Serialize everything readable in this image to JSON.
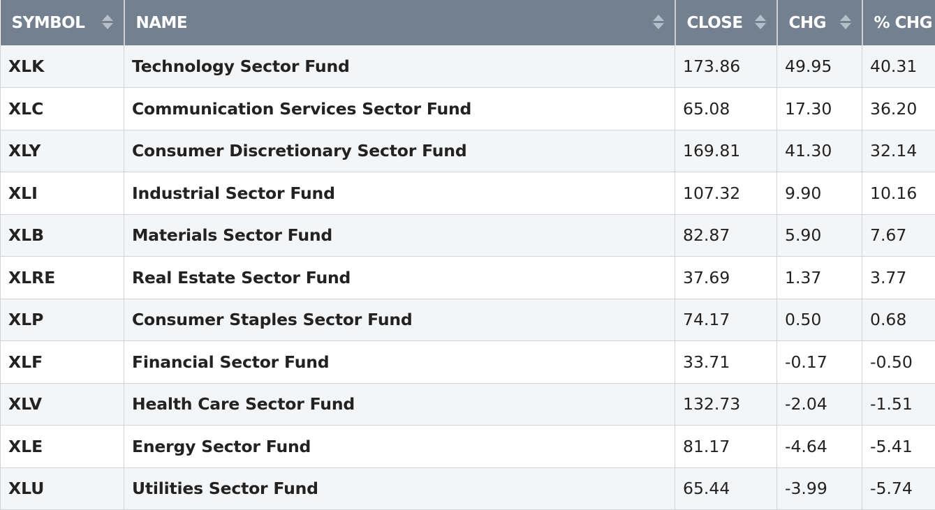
{
  "columns": {
    "symbol": "SYMBOL",
    "name": "NAME",
    "close": "CLOSE",
    "chg": "CHG",
    "pct_chg": "% CHG"
  },
  "sort_icon": "sort-updown-icon",
  "colors": {
    "header_bg": "#72808f",
    "link": "#164a82",
    "row_alt": "#f3f5f7"
  },
  "rows": [
    {
      "symbol": "XLK",
      "name": "Technology Sector Fund",
      "close": "173.86",
      "chg": "49.95",
      "pct_chg": "40.31"
    },
    {
      "symbol": "XLC",
      "name": "Communication Services Sector Fund",
      "close": "65.08",
      "chg": "17.30",
      "pct_chg": "36.20"
    },
    {
      "symbol": "XLY",
      "name": "Consumer Discretionary Sector Fund",
      "close": "169.81",
      "chg": "41.30",
      "pct_chg": "32.14"
    },
    {
      "symbol": "XLI",
      "name": "Industrial Sector Fund",
      "close": "107.32",
      "chg": "9.90",
      "pct_chg": "10.16"
    },
    {
      "symbol": "XLB",
      "name": "Materials Sector Fund",
      "close": "82.87",
      "chg": "5.90",
      "pct_chg": "7.67"
    },
    {
      "symbol": "XLRE",
      "name": "Real Estate Sector Fund",
      "close": "37.69",
      "chg": "1.37",
      "pct_chg": "3.77"
    },
    {
      "symbol": "XLP",
      "name": "Consumer Staples Sector Fund",
      "close": "74.17",
      "chg": "0.50",
      "pct_chg": "0.68"
    },
    {
      "symbol": "XLF",
      "name": "Financial Sector Fund",
      "close": "33.71",
      "chg": "-0.17",
      "pct_chg": "-0.50"
    },
    {
      "symbol": "XLV",
      "name": "Health Care Sector Fund",
      "close": "132.73",
      "chg": "-2.04",
      "pct_chg": "-1.51"
    },
    {
      "symbol": "XLE",
      "name": "Energy Sector Fund",
      "close": "81.17",
      "chg": "-4.64",
      "pct_chg": "-5.41"
    },
    {
      "symbol": "XLU",
      "name": "Utilities Sector Fund",
      "close": "65.44",
      "chg": "-3.99",
      "pct_chg": "-5.74"
    }
  ]
}
